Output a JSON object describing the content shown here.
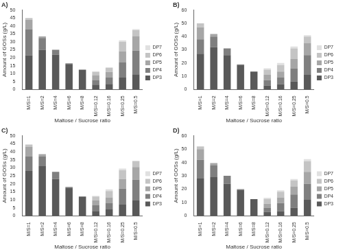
{
  "chart_data": [
    {
      "type": "bar",
      "title": "A)",
      "x_label": "Maltose / Sucrose ratio",
      "y_label": "Amount of GOSs (g/L)",
      "categories": [
        "M/S=1",
        "M/S=2",
        "M/S=4",
        "M/S=6",
        "M/S=8",
        "M/S=0.12",
        "M/S=0.16",
        "M/S=0.25",
        "M/S=0.5"
      ],
      "series": [
        {
          "name": "DP3",
          "color": "#595959",
          "values": [
            21.5,
            25,
            22,
            16,
            12.5,
            3,
            3.5,
            7.5,
            9.5
          ]
        },
        {
          "name": "DP4",
          "color": "#7f7f7f",
          "values": [
            16.5,
            7.5,
            3,
            0.5,
            0,
            3,
            4,
            9.5,
            15
          ]
        },
        {
          "name": "DP5",
          "color": "#a6a6a6",
          "values": [
            6,
            1,
            0,
            0,
            0,
            3,
            3.5,
            7,
            9
          ]
        },
        {
          "name": "DP6",
          "color": "#c4c4c4",
          "values": [
            1,
            0,
            0,
            0,
            0,
            2,
            2.5,
            6,
            4
          ]
        },
        {
          "name": "DP7",
          "color": "#e0e0e0",
          "values": [
            0,
            0,
            0,
            0,
            0,
            0.5,
            0.5,
            1,
            0.5
          ]
        }
      ],
      "ylim": [
        0,
        50
      ],
      "yticks": [
        0,
        5,
        10,
        15,
        20,
        25,
        30,
        35,
        40,
        45,
        50
      ],
      "stacked": true,
      "legend": "right",
      "grid": false
    },
    {
      "type": "bar",
      "title": "B)",
      "x_label": "Maltose / Sucrose ratio",
      "y_label": "Amount of GOSs (g/L)",
      "categories": [
        "M/S=1",
        "M/S=2",
        "M/S=4",
        "M/S=6",
        "M/S=8",
        "M/S=0.12",
        "M/S=0.16",
        "M/S=0.25",
        "M/S=0.5"
      ],
      "series": [
        {
          "name": "DP3",
          "color": "#595959",
          "values": [
            27,
            32,
            26,
            18.5,
            13.5,
            3,
            4,
            6,
            11
          ]
        },
        {
          "name": "DP4",
          "color": "#7f7f7f",
          "values": [
            11,
            8,
            5,
            0.5,
            0,
            4,
            5,
            10,
            15
          ]
        },
        {
          "name": "DP5",
          "color": "#a6a6a6",
          "values": [
            9,
            2,
            0,
            0,
            0,
            4,
            4.5,
            7,
            9
          ]
        },
        {
          "name": "DP6",
          "color": "#c4c4c4",
          "values": [
            3,
            0,
            0,
            0,
            0,
            4,
            5,
            8,
            5
          ]
        },
        {
          "name": "DP7",
          "color": "#e0e0e0",
          "values": [
            0,
            0,
            0,
            0,
            0,
            1,
            1.5,
            1.5,
            1
          ]
        }
      ],
      "ylim": [
        0,
        60
      ],
      "yticks": [
        0,
        10,
        20,
        30,
        40,
        50,
        60
      ],
      "stacked": true,
      "legend": "right",
      "grid": false
    },
    {
      "type": "bar",
      "title": "C)",
      "x_label": "Maltose / Sucrose ratio",
      "y_label": "Amount of GOSs (g/L)",
      "categories": [
        "M/S=1",
        "M/S=2",
        "M/S=4",
        "M/S=6",
        "M/S=8",
        "M/S=0.12",
        "M/S=0.16",
        "M/S=0.25",
        "M/S=0.5"
      ],
      "series": [
        {
          "name": "DP3",
          "color": "#595959",
          "values": [
            28,
            31,
            23,
            17.5,
            12,
            3,
            4,
            7,
            9.5
          ]
        },
        {
          "name": "DP4",
          "color": "#7f7f7f",
          "values": [
            9,
            6,
            4.5,
            0.5,
            0,
            3.5,
            4,
            10,
            13
          ]
        },
        {
          "name": "DP5",
          "color": "#a6a6a6",
          "values": [
            6,
            1.5,
            0,
            0,
            0,
            3,
            3.5,
            6,
            8
          ]
        },
        {
          "name": "DP6",
          "color": "#c4c4c4",
          "values": [
            1.5,
            0,
            0,
            0,
            0,
            2.5,
            4,
            5.5,
            3.5
          ]
        },
        {
          "name": "DP7",
          "color": "#e0e0e0",
          "values": [
            0,
            0,
            0,
            0,
            0,
            0.5,
            1,
            1,
            0.5
          ]
        }
      ],
      "ylim": [
        0,
        50
      ],
      "yticks": [
        0,
        5,
        10,
        15,
        20,
        25,
        30,
        35,
        40,
        45,
        50
      ],
      "stacked": true,
      "legend": "right",
      "grid": false
    },
    {
      "type": "bar",
      "title": "D)",
      "x_label": "Maltose / Sucrose ratio",
      "y_label": "Amount of GOSs (g/L)",
      "categories": [
        "M/S=1",
        "M/S=2",
        "M/S=4",
        "M/S=6",
        "M/S=8",
        "M/S=0.12",
        "M/S=0.16",
        "M/S=0.25",
        "M/S=0.5"
      ],
      "series": [
        {
          "name": "DP3",
          "color": "#595959",
          "values": [
            28,
            29,
            24,
            19.5,
            12.5,
            3,
            3.5,
            6,
            12
          ]
        },
        {
          "name": "DP4",
          "color": "#7f7f7f",
          "values": [
            14,
            9,
            6,
            0.5,
            0,
            3,
            6,
            10,
            12
          ]
        },
        {
          "name": "DP5",
          "color": "#a6a6a6",
          "values": [
            8,
            1.5,
            0,
            0,
            0,
            3,
            4,
            6,
            9
          ]
        },
        {
          "name": "DP6",
          "color": "#c4c4c4",
          "values": [
            2,
            0,
            0,
            0,
            0,
            3.5,
            4.5,
            4.5,
            8
          ]
        },
        {
          "name": "DP7",
          "color": "#e0e0e0",
          "values": [
            0,
            0,
            0,
            0,
            0,
            1,
            1,
            1,
            1.5
          ]
        }
      ],
      "ylim": [
        0,
        60
      ],
      "yticks": [
        0,
        10,
        20,
        30,
        40,
        50,
        60
      ],
      "stacked": true,
      "legend": "right",
      "grid": false
    }
  ]
}
